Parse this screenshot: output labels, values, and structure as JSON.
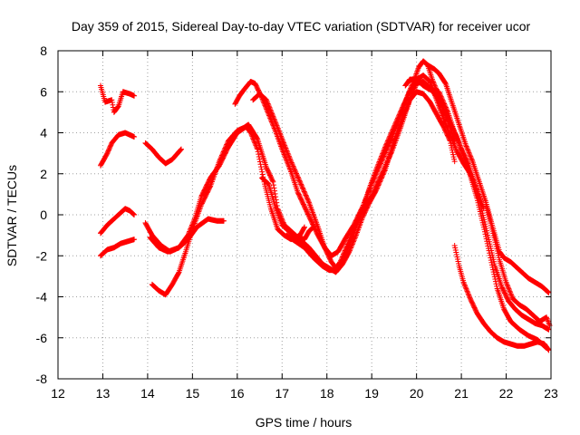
{
  "chart_data": {
    "type": "scatter",
    "title": "Day 359 of 2015, Sidereal Day-to-day VTEC variation (SDTVAR) for receiver ucor",
    "xlabel": "GPS time / hours",
    "ylabel": "SDTVAR / TECUs",
    "xlim": [
      12,
      23
    ],
    "ylim": [
      -8,
      8
    ],
    "x_ticks": [
      12,
      13,
      14,
      15,
      16,
      17,
      18,
      19,
      20,
      21,
      22,
      23
    ],
    "y_ticks": [
      -8,
      -6,
      -4,
      -2,
      0,
      2,
      4,
      6,
      8
    ],
    "grid": true,
    "marker": "+",
    "color": "#ff0000",
    "series": [
      {
        "name": "s1",
        "points": [
          [
            12.95,
            6.3
          ],
          [
            13.05,
            5.5
          ],
          [
            13.2,
            5.6
          ],
          [
            13.25,
            5.0
          ],
          [
            13.35,
            5.3
          ],
          [
            13.45,
            6.0
          ],
          [
            13.6,
            5.9
          ],
          [
            13.7,
            5.8
          ]
        ]
      },
      {
        "name": "s2",
        "points": [
          [
            12.95,
            2.4
          ],
          [
            13.1,
            3.0
          ],
          [
            13.2,
            3.5
          ],
          [
            13.35,
            3.9
          ],
          [
            13.5,
            4.0
          ],
          [
            13.6,
            3.9
          ],
          [
            13.7,
            3.8
          ]
        ]
      },
      {
        "name": "s3",
        "points": [
          [
            12.95,
            -0.9
          ],
          [
            13.1,
            -0.5
          ],
          [
            13.25,
            -0.2
          ],
          [
            13.35,
            0.0
          ],
          [
            13.5,
            0.3
          ],
          [
            13.6,
            0.2
          ],
          [
            13.7,
            0.0
          ]
        ]
      },
      {
        "name": "s4",
        "points": [
          [
            12.95,
            -2.0
          ],
          [
            13.1,
            -1.7
          ],
          [
            13.25,
            -1.6
          ],
          [
            13.4,
            -1.4
          ],
          [
            13.55,
            -1.3
          ],
          [
            13.7,
            -1.2
          ]
        ]
      },
      {
        "name": "s5",
        "points": [
          [
            13.95,
            3.5
          ],
          [
            14.1,
            3.2
          ],
          [
            14.25,
            2.8
          ],
          [
            14.4,
            2.5
          ],
          [
            14.55,
            2.7
          ],
          [
            14.75,
            3.2
          ]
        ]
      },
      {
        "name": "s6",
        "points": [
          [
            13.95,
            -0.4
          ],
          [
            14.1,
            -1.0
          ],
          [
            14.3,
            -1.5
          ],
          [
            14.5,
            -1.8
          ],
          [
            14.7,
            -1.6
          ],
          [
            14.9,
            -1.2
          ],
          [
            15.1,
            -0.6
          ],
          [
            15.35,
            -0.2
          ],
          [
            15.55,
            -0.3
          ],
          [
            15.7,
            -0.3
          ]
        ]
      },
      {
        "name": "s7",
        "points": [
          [
            14.05,
            -1.1
          ],
          [
            14.25,
            -1.6
          ],
          [
            14.45,
            -1.8
          ],
          [
            14.7,
            -1.6
          ],
          [
            14.9,
            -1.0
          ],
          [
            15.05,
            -0.2
          ],
          [
            15.2,
            0.9
          ],
          [
            15.4,
            1.8
          ],
          [
            15.6,
            2.4
          ],
          [
            15.8,
            3.3
          ],
          [
            16.0,
            4.0
          ],
          [
            16.2,
            4.3
          ],
          [
            16.3,
            4.0
          ],
          [
            16.45,
            3.2
          ],
          [
            16.6,
            1.6
          ],
          [
            16.75,
            0.3
          ],
          [
            16.9,
            -0.7
          ],
          [
            17.05,
            -1.0
          ],
          [
            17.2,
            -1.2
          ],
          [
            17.4,
            -1.0
          ],
          [
            17.5,
            -0.6
          ]
        ]
      },
      {
        "name": "s8",
        "points": [
          [
            14.1,
            -3.4
          ],
          [
            14.25,
            -3.7
          ],
          [
            14.4,
            -3.9
          ],
          [
            14.55,
            -3.4
          ],
          [
            14.7,
            -2.8
          ],
          [
            14.85,
            -1.8
          ],
          [
            15.0,
            -0.7
          ],
          [
            15.2,
            0.5
          ],
          [
            15.4,
            1.4
          ],
          [
            15.6,
            2.6
          ],
          [
            15.8,
            3.6
          ],
          [
            16.0,
            4.1
          ],
          [
            16.15,
            4.25
          ],
          [
            16.25,
            4.4
          ],
          [
            16.45,
            3.7
          ],
          [
            16.55,
            3.0
          ],
          [
            16.65,
            2.3
          ],
          [
            16.8,
            1.6
          ],
          [
            16.9,
            0.3
          ],
          [
            17.05,
            -0.5
          ],
          [
            17.2,
            -0.8
          ],
          [
            17.35,
            -1.1
          ],
          [
            17.5,
            -1.2
          ],
          [
            17.6,
            -0.8
          ],
          [
            17.7,
            -0.6
          ]
        ]
      },
      {
        "name": "s9",
        "points": [
          [
            15.95,
            5.4
          ],
          [
            16.05,
            5.8
          ],
          [
            16.15,
            6.1
          ],
          [
            16.3,
            6.5
          ],
          [
            16.4,
            6.4
          ],
          [
            16.55,
            5.7
          ],
          [
            16.7,
            4.9
          ],
          [
            16.85,
            4.1
          ],
          [
            17.0,
            3.2
          ],
          [
            17.2,
            2.1
          ],
          [
            17.35,
            1.1
          ],
          [
            17.5,
            0.4
          ],
          [
            17.65,
            -0.3
          ],
          [
            17.8,
            -1.0
          ],
          [
            17.95,
            -1.6
          ],
          [
            18.1,
            -2.0
          ],
          [
            18.25,
            -1.8
          ],
          [
            18.4,
            -1.2
          ],
          [
            18.6,
            -0.5
          ],
          [
            18.8,
            0.4
          ],
          [
            19.0,
            1.5
          ],
          [
            19.2,
            2.5
          ],
          [
            19.4,
            3.5
          ],
          [
            19.6,
            4.6
          ],
          [
            19.8,
            5.8
          ],
          [
            19.95,
            6.6
          ],
          [
            20.05,
            7.2
          ],
          [
            20.15,
            7.5
          ],
          [
            20.25,
            7.3
          ],
          [
            20.35,
            6.6
          ],
          [
            20.5,
            5.8
          ],
          [
            20.7,
            4.6
          ],
          [
            20.85,
            3.6
          ]
        ]
      },
      {
        "name": "s10",
        "points": [
          [
            16.35,
            5.6
          ],
          [
            16.5,
            5.9
          ],
          [
            16.65,
            5.6
          ],
          [
            16.8,
            4.8
          ],
          [
            17.0,
            3.7
          ],
          [
            17.2,
            2.6
          ],
          [
            17.4,
            1.6
          ],
          [
            17.6,
            0.6
          ],
          [
            17.8,
            -0.6
          ],
          [
            17.95,
            -1.6
          ],
          [
            18.1,
            -2.3
          ],
          [
            18.2,
            -2.6
          ],
          [
            18.3,
            -2.3
          ],
          [
            18.45,
            -1.5
          ],
          [
            18.6,
            -0.7
          ],
          [
            18.75,
            0.1
          ],
          [
            18.9,
            0.6
          ],
          [
            19.0,
            0.9
          ],
          [
            19.1,
            1.4
          ],
          [
            19.25,
            2.1
          ],
          [
            19.45,
            3.1
          ],
          [
            19.65,
            4.3
          ],
          [
            19.85,
            5.6
          ],
          [
            20.0,
            6.4
          ],
          [
            20.15,
            6.5
          ],
          [
            20.3,
            6.2
          ],
          [
            20.5,
            5.6
          ],
          [
            20.7,
            4.7
          ],
          [
            20.9,
            3.8
          ],
          [
            21.05,
            2.9
          ],
          [
            21.2,
            1.9
          ],
          [
            21.35,
            0.8
          ],
          [
            21.5,
            -0.6
          ],
          [
            21.65,
            -2.1
          ],
          [
            21.8,
            -3.6
          ],
          [
            21.95,
            -4.6
          ],
          [
            22.1,
            -5.2
          ],
          [
            22.3,
            -5.6
          ],
          [
            22.5,
            -5.9
          ],
          [
            22.7,
            -6.1
          ],
          [
            22.9,
            -6.5
          ]
        ]
      },
      {
        "name": "s11",
        "points": [
          [
            16.55,
            1.8
          ],
          [
            16.7,
            1.5
          ],
          [
            16.85,
            0.4
          ],
          [
            17.0,
            -0.5
          ],
          [
            17.2,
            -0.9
          ],
          [
            17.4,
            -1.2
          ],
          [
            17.6,
            -1.6
          ],
          [
            17.75,
            -2.0
          ],
          [
            17.9,
            -2.4
          ],
          [
            18.05,
            -2.6
          ],
          [
            18.2,
            -2.8
          ],
          [
            18.35,
            -2.4
          ],
          [
            18.5,
            -1.8
          ],
          [
            18.65,
            -1.0
          ],
          [
            18.8,
            -0.1
          ],
          [
            18.95,
            0.6
          ],
          [
            19.1,
            1.2
          ],
          [
            19.3,
            2.2
          ],
          [
            19.5,
            3.6
          ],
          [
            19.7,
            4.8
          ],
          [
            19.85,
            5.6
          ],
          [
            20.0,
            6.0
          ],
          [
            20.15,
            5.9
          ],
          [
            20.3,
            5.5
          ],
          [
            20.45,
            4.9
          ],
          [
            20.6,
            4.3
          ],
          [
            20.75,
            3.6
          ],
          [
            20.85,
            2.6
          ]
        ]
      },
      {
        "name": "s12",
        "points": [
          [
            17.1,
            -1.0
          ],
          [
            17.3,
            -1.3
          ],
          [
            17.5,
            -1.6
          ],
          [
            17.7,
            -2.1
          ],
          [
            17.9,
            -2.5
          ],
          [
            18.05,
            -2.7
          ],
          [
            18.2,
            -2.7
          ],
          [
            18.35,
            -2.3
          ],
          [
            18.5,
            -1.5
          ],
          [
            18.65,
            -0.6
          ],
          [
            18.8,
            0.3
          ],
          [
            18.95,
            1.3
          ],
          [
            19.1,
            2.2
          ],
          [
            19.3,
            3.3
          ],
          [
            19.5,
            4.3
          ],
          [
            19.7,
            5.3
          ],
          [
            19.85,
            6.0
          ],
          [
            20.0,
            6.6
          ],
          [
            20.15,
            6.8
          ],
          [
            20.3,
            6.5
          ],
          [
            20.45,
            5.6
          ],
          [
            20.6,
            4.7
          ],
          [
            20.75,
            3.9
          ],
          [
            20.9,
            3.1
          ],
          [
            21.05,
            2.5
          ],
          [
            21.2,
            2.0
          ],
          [
            21.35,
            1.2
          ],
          [
            21.5,
            0.3
          ]
        ]
      },
      {
        "name": "s13",
        "points": [
          [
            19.75,
            6.3
          ],
          [
            19.85,
            6.6
          ],
          [
            20.0,
            6.6
          ],
          [
            20.15,
            6.3
          ],
          [
            20.3,
            6.1
          ],
          [
            20.5,
            6.0
          ],
          [
            20.7,
            5.0
          ],
          [
            20.85,
            4.0
          ],
          [
            21.0,
            3.2
          ],
          [
            21.15,
            2.5
          ],
          [
            21.3,
            1.5
          ],
          [
            21.45,
            0.3
          ],
          [
            21.6,
            -1.1
          ],
          [
            21.75,
            -2.5
          ],
          [
            21.9,
            -3.5
          ],
          [
            22.05,
            -4.2
          ],
          [
            22.2,
            -4.6
          ],
          [
            22.35,
            -4.9
          ],
          [
            22.5,
            -5.1
          ],
          [
            22.65,
            -5.3
          ],
          [
            22.8,
            -5.4
          ],
          [
            22.95,
            -5.6
          ]
        ]
      },
      {
        "name": "s14",
        "points": [
          [
            20.25,
            7.3
          ],
          [
            20.4,
            7.1
          ],
          [
            20.5,
            6.9
          ],
          [
            20.65,
            6.4
          ],
          [
            20.8,
            5.4
          ],
          [
            20.95,
            4.4
          ],
          [
            21.1,
            3.4
          ],
          [
            21.25,
            2.6
          ],
          [
            21.4,
            1.6
          ],
          [
            21.55,
            0.6
          ],
          [
            21.7,
            -0.6
          ],
          [
            21.85,
            -1.8
          ],
          [
            21.95,
            -2.1
          ],
          [
            22.1,
            -2.3
          ],
          [
            22.2,
            -2.5
          ],
          [
            22.35,
            -2.8
          ],
          [
            22.5,
            -3.1
          ],
          [
            22.65,
            -3.3
          ],
          [
            22.8,
            -3.5
          ],
          [
            22.95,
            -3.8
          ]
        ]
      },
      {
        "name": "s15",
        "points": [
          [
            20.85,
            -1.5
          ],
          [
            20.95,
            -2.5
          ],
          [
            21.05,
            -3.3
          ],
          [
            21.2,
            -4.1
          ],
          [
            21.35,
            -4.8
          ],
          [
            21.5,
            -5.3
          ],
          [
            21.65,
            -5.7
          ],
          [
            21.8,
            -6.0
          ],
          [
            21.95,
            -6.2
          ],
          [
            22.1,
            -6.3
          ],
          [
            22.25,
            -6.4
          ],
          [
            22.4,
            -6.4
          ],
          [
            22.55,
            -6.3
          ],
          [
            22.7,
            -6.2
          ],
          [
            22.85,
            -6.3
          ],
          [
            22.95,
            -6.6
          ]
        ]
      },
      {
        "name": "s16",
        "points": [
          [
            21.55,
            0.5
          ],
          [
            21.7,
            -0.8
          ],
          [
            21.85,
            -2.2
          ],
          [
            22.0,
            -3.3
          ],
          [
            22.15,
            -4.1
          ],
          [
            22.3,
            -4.4
          ],
          [
            22.45,
            -4.6
          ],
          [
            22.6,
            -4.9
          ],
          [
            22.75,
            -5.2
          ],
          [
            22.9,
            -5.0
          ],
          [
            22.97,
            -5.4
          ]
        ]
      }
    ]
  }
}
